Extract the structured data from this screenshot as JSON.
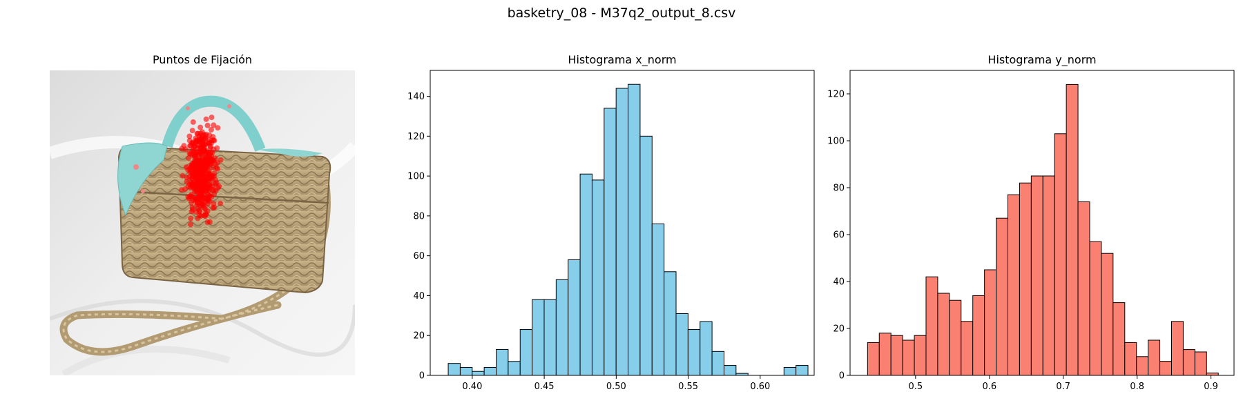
{
  "figure": {
    "title": "basketry_08 - M37q2_output_8.csv"
  },
  "chart_data": [
    {
      "type": "scatter",
      "title": "Puntos de Fijación",
      "xlabel": "",
      "ylabel": "",
      "axes_visible": false,
      "background": "photo of a woven straw basket bag with a turquoise floral scarf tied on the handle, on white fabric",
      "point_color": "#ff0000",
      "point_alpha": 0.6,
      "note": "several hundred fixation points concentrated on the upper-left lid and handle area of the basket"
    },
    {
      "type": "bar",
      "subtype": "histogram",
      "title": "Histograma x_norm",
      "xlabel": "",
      "ylabel": "",
      "bar_color": "#87ceeb",
      "edge_color": "#000000",
      "bin_start": 0.3833,
      "bin_width": 0.00833,
      "xlim": [
        0.3708,
        0.6375
      ],
      "ylim": [
        0,
        153
      ],
      "xticks": [
        "0.40",
        "0.45",
        "0.50",
        "0.55",
        "0.60"
      ],
      "yticks": [
        "0",
        "20",
        "40",
        "60",
        "80",
        "100",
        "120",
        "140"
      ],
      "values": [
        6,
        4,
        2,
        4,
        13,
        7,
        23,
        38,
        38,
        48,
        58,
        101,
        98,
        134,
        144,
        146,
        120,
        76,
        52,
        31,
        23,
        27,
        12,
        5,
        1,
        0,
        0,
        0,
        4,
        5
      ]
    },
    {
      "type": "bar",
      "subtype": "histogram",
      "title": "Histograma y_norm",
      "xlabel": "",
      "ylabel": "",
      "bar_color": "#fa8072",
      "edge_color": "#000000",
      "bin_start": 0.435,
      "bin_width": 0.01583,
      "xlim": [
        0.4113,
        0.9312
      ],
      "ylim": [
        0,
        130
      ],
      "xticks": [
        "0.5",
        "0.6",
        "0.7",
        "0.8",
        "0.9"
      ],
      "yticks": [
        "0",
        "20",
        "40",
        "60",
        "80",
        "100",
        "120"
      ],
      "values": [
        14,
        18,
        17,
        15,
        17,
        42,
        35,
        32,
        23,
        34,
        45,
        67,
        77,
        82,
        85,
        85,
        103,
        124,
        74,
        57,
        52,
        31,
        14,
        8,
        15,
        6,
        23,
        11,
        10,
        1
      ]
    }
  ]
}
